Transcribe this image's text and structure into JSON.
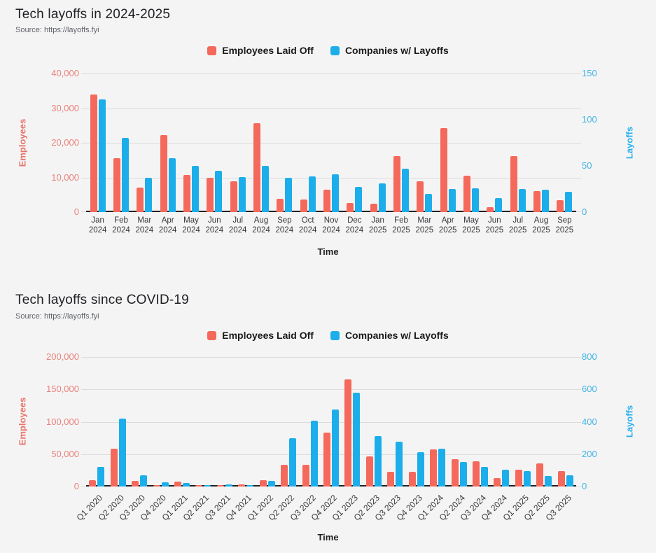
{
  "page_background": "#f5f4f5",
  "colors": {
    "employees_series": "#f4695b",
    "companies_series": "#1caeea",
    "left_axis_text": "#e8837b",
    "right_axis_text": "#41b4e4",
    "left_axis_title": "#e8756b",
    "right_axis_title": "#29b1ee",
    "gridline": "#dcdbdc",
    "axis_line": "#222222",
    "title_text": "#202124",
    "source_text": "#5f6368",
    "legend_text": "#1a1a1a",
    "tick_text": "#37373a"
  },
  "chart_data": [
    {
      "type": "bar",
      "title": "Tech layoffs in 2024-2025",
      "subtitle": "Source: https://layoffs.fyi",
      "xlabel": "Time",
      "ylabel_left": "Employees",
      "ylabel_right": "Layoffs",
      "ylim_left": [
        0,
        40000
      ],
      "ylim_right": [
        0,
        150
      ],
      "yticks_left": [
        0,
        10000,
        20000,
        30000,
        40000
      ],
      "yticks_left_labels": [
        "0",
        "10,000",
        "20,000",
        "30,000",
        "40,000"
      ],
      "yticks_right": [
        0,
        50,
        100,
        150
      ],
      "yticks_right_labels": [
        "0",
        "50",
        "100",
        "150"
      ],
      "grid": true,
      "legend_position": "top",
      "x_tick_rotation": 0,
      "categories": [
        "Jan 2024",
        "Feb 2024",
        "Mar 2024",
        "Apr 2024",
        "May 2024",
        "Jun 2024",
        "Jul 2024",
        "Aug 2024",
        "Sep 2024",
        "Oct 2024",
        "Nov 2024",
        "Dec 2024",
        "Jan 2025",
        "Feb 2025",
        "Mar 2025",
        "Apr 2025",
        "May 2025",
        "Jun 2025",
        "Jul 2025",
        "Aug 2025",
        "Sep 2025"
      ],
      "series": [
        {
          "name": "Employees Laid Off",
          "axis": "left",
          "color": "#f4695b",
          "values": [
            34000,
            15600,
            7100,
            22200,
            10700,
            10000,
            8800,
            25700,
            3800,
            3600,
            6500,
            2600,
            2400,
            16200,
            8800,
            24300,
            10500,
            1400,
            16200,
            6100,
            3400
          ]
        },
        {
          "name": "Companies w/ Layoffs",
          "axis": "right",
          "color": "#1caeea",
          "values": [
            122,
            80,
            37,
            58,
            50,
            45,
            38,
            50,
            37,
            39,
            41,
            27,
            31,
            47,
            20,
            25,
            26,
            15,
            25,
            24,
            22
          ]
        }
      ]
    },
    {
      "type": "bar",
      "title": "Tech layoffs since COVID-19",
      "subtitle": "Source: https://layoffs.fyi",
      "xlabel": "Time",
      "ylabel_left": "Employees",
      "ylabel_right": "Layoffs",
      "ylim_left": [
        0,
        200000
      ],
      "ylim_right": [
        0,
        800
      ],
      "yticks_left": [
        0,
        50000,
        100000,
        150000,
        200000
      ],
      "yticks_left_labels": [
        "0",
        "50,000",
        "100,000",
        "150,000",
        "200,000"
      ],
      "yticks_right": [
        0,
        200,
        400,
        600,
        800
      ],
      "yticks_right_labels": [
        "0",
        "200",
        "400",
        "600",
        "800"
      ],
      "grid": true,
      "legend_position": "top",
      "x_tick_rotation": -45,
      "categories": [
        "Q1 2020",
        "Q2 2020",
        "Q3 2020",
        "Q4 2020",
        "Q1 2021",
        "Q2 2021",
        "Q3 2021",
        "Q4 2021",
        "Q1 2022",
        "Q2 2022",
        "Q3 2022",
        "Q4 2022",
        "Q1 2023",
        "Q2 2023",
        "Q3 2023",
        "Q4 2023",
        "Q1 2024",
        "Q2 2024",
        "Q3 2024",
        "Q4 2024",
        "Q1 2025",
        "Q2 2025",
        "Q3 2025"
      ],
      "series": [
        {
          "name": "Employees Laid Off",
          "axis": "left",
          "color": "#f4695b",
          "values": [
            9500,
            58500,
            9000,
            2000,
            8000,
            2200,
            2500,
            3200,
            9500,
            34000,
            34000,
            83000,
            166000,
            46000,
            23000,
            23000,
            57000,
            42000,
            39000,
            12600,
            26300,
            35300,
            24000
          ]
        },
        {
          "name": "Companies w/ Layoffs",
          "axis": "right",
          "color": "#1caeea",
          "values": [
            120,
            420,
            70,
            25,
            22,
            8,
            12,
            8,
            35,
            300,
            405,
            475,
            580,
            310,
            275,
            210,
            235,
            150,
            120,
            105,
            97,
            65,
            69
          ]
        }
      ]
    }
  ]
}
